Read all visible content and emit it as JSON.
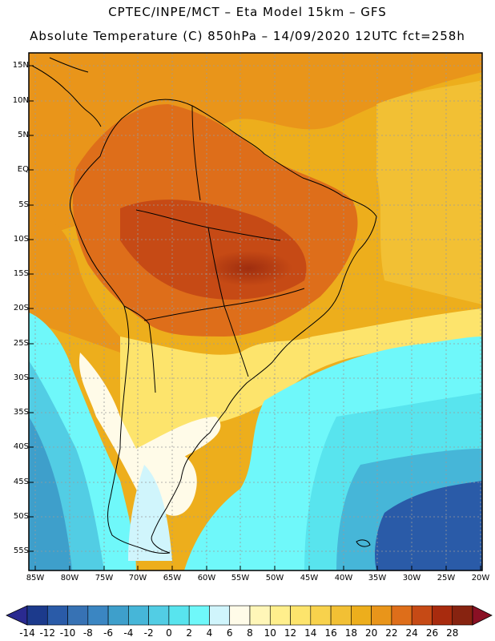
{
  "header": {
    "line1": "CPTEC/INPE/MCT –  Eta Model 15km – GFS",
    "line2": "Absolute Temperature (C) 850hPa – 14/09/2020 12UTC fct=258h"
  },
  "map": {
    "lat_ticks": [
      "15N",
      "10N",
      "5N",
      "EQ",
      "5S",
      "10S",
      "15S",
      "20S",
      "25S",
      "30S",
      "35S",
      "40S",
      "45S",
      "50S",
      "55S"
    ],
    "lon_ticks": [
      "85W",
      "80W",
      "75W",
      "70W",
      "65W",
      "60W",
      "55W",
      "50W",
      "45W",
      "40W",
      "35W",
      "30W",
      "25W",
      "20W"
    ],
    "colors": {
      "frame": "#000000",
      "grid": "#9a9a9a",
      "coastline": "#000000"
    }
  },
  "colorbar": {
    "labels": [
      "-14",
      "-12",
      "-10",
      "-8",
      "-6",
      "-4",
      "-2",
      "0",
      "2",
      "4",
      "6",
      "8",
      "10",
      "12",
      "14",
      "16",
      "18",
      "20",
      "22",
      "24",
      "26",
      "28"
    ],
    "colors": [
      "#1c3a8c",
      "#2a5ba8",
      "#3772b4",
      "#3b86c2",
      "#3e9fcb",
      "#46b6d8",
      "#52cde4",
      "#58e4ee",
      "#6ff8fa",
      "#d0f5fc",
      "#fffbe8",
      "#fff6b8",
      "#ffef8c",
      "#fde46c",
      "#f8d24c",
      "#f2c034",
      "#edae1c",
      "#e9951a",
      "#de6e1a",
      "#c64a15",
      "#a82b0e",
      "#872310"
    ],
    "under_color": "#2a2a90",
    "over_color": "#8a1024"
  }
}
